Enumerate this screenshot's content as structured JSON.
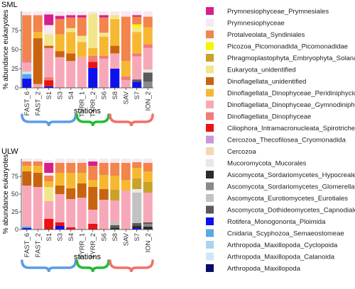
{
  "colors": {
    "Prymnesiophyceae_Prymnesiales": "#d61f8c",
    "Prymnesiophyceae": "#f7e8f2",
    "Protalveolata_Syndiniales": "#f2844c",
    "Picozoa_Picomonadida_Picomonadidae": "#f5f500",
    "Phragmoplastophyta_Embryophyta_Solanales": "#c9a22a",
    "Eukaryota_unidentified": "#f2e68c",
    "Dinoflagellata_unidentified": "#c86410",
    "Dinoflagellata_Dinophyceae_Peridiniphycidae": "#f7b831",
    "Dinoflagellata_Dinophyceae_Gymnodiniphycidae": "#f7a8b8",
    "Dinoflagellata_Dinophyceae": "#ef7c78",
    "Ciliophora_Intramacronucleata_Spirotrichea": "#ee1111",
    "Cercozoa_Thecofilosea_Cryomonadida": "#c898d6",
    "Cercozoa": "#f5d6b0",
    "Mucoromycota_Mucorales": "#e8e8e8",
    "Ascomycota_Sordariomycetes_Hypocreales": "#2b2b2b",
    "Ascomycota_Sordariomycetes_Glomerellales": "#8a8a8a",
    "Ascomycota_Eurotiomycetes_Eurotiales": "#c2c2c2",
    "Ascomycota_Dothideomycetes_Capnodiales": "#5a5a5a",
    "Rotifera_Monogononta_Ploimida": "#1010ee",
    "Cnidaria_Scyphozoa_Semaeostomeae": "#5aa8e8",
    "Arthropoda_Maxillopoda_Cyclopoida": "#a8d4f0",
    "Arthropoda_Maxillopoda_Calanoida": "#d0e6f8",
    "Arthropoda_Maxillopoda": "#0a0a6e"
  },
  "chart_data": {
    "type": "bar",
    "stacked": true,
    "xlabel": "stations",
    "ylabel": "% abundance eukaryotes",
    "ylim": [
      0,
      100
    ],
    "yticks": [
      0,
      25,
      50,
      75
    ],
    "categories": [
      "FAST_6",
      "FAST_2",
      "S1",
      "S3",
      "S4",
      "TYRR_1",
      "TYRR_2",
      "S6",
      "S8",
      "SAV",
      "S7",
      "ION_2"
    ],
    "legend": [
      "Prymnesiophyceae_Prymnesiales",
      "Prymnesiophyceae",
      "Protalveolata_Syndiniales",
      "Picozoa_Picomonadida_Picomonadidae",
      "Phragmoplastophyta_Embryophyta_Solanales",
      "Eukaryota_unidentified",
      "Dinoflagellata_unidentified",
      "Dinoflagellata_Dinophyceae_Peridiniphycidae",
      "Dinoflagellata_Dinophyceae_Gymnodiniphycidae",
      "Dinoflagellata_Dinophyceae",
      "Ciliophora_Intramacronucleata_Spirotrichea",
      "Cercozoa_Thecofilosea_Cryomonadida",
      "Cercozoa",
      "Mucoromycota_Mucorales",
      "Ascomycota_Sordariomycetes_Hypocreales",
      "Ascomycota_Sordariomycetes_Glomerellales",
      "Ascomycota_Eurotiomycetes_Eurotiales",
      "Ascomycota_Dothideomycetes_Capnodiales",
      "Rotifera_Monogononta_Ploimida",
      "Cnidaria_Scyphozoa_Semaeostomeae",
      "Arthropoda_Maxillopoda_Cyclopoida",
      "Arthropoda_Maxillopoda_Calanoida",
      "Arthropoda_Maxillopoda"
    ],
    "station_groups": [
      {
        "from": 0,
        "to": 4,
        "color": "#5b9be8"
      },
      {
        "from": 5,
        "to": 7,
        "color": "#22bb33"
      },
      {
        "from": 8,
        "to": 11,
        "color": "#f07068"
      }
    ],
    "panels": [
      {
        "title": "SML",
        "bars": [
          [
            [
              "Rotifera_Monogononta_Ploimida",
              12
            ],
            [
              "Cnidaria_Scyphozoa_Semaeostomeae",
              6
            ],
            [
              "Arthropoda_Maxillopoda_Calanoida",
              3
            ],
            [
              "Dinoflagellata_Dinophyceae_Gymnodiniphycidae",
              12
            ],
            [
              "Dinoflagellata_Dinophyceae",
              4
            ],
            [
              "Protalveolata_Syndiniales",
              58
            ],
            [
              "Prymnesiophyceae",
              5
            ]
          ],
          [
            [
              "Dinoflagellata_Dinophyceae_Gymnodiniphycidae",
              5
            ],
            [
              "Dinoflagellata_unidentified",
              60
            ],
            [
              "Dinoflagellata_Dinophyceae_Peridiniphycidae",
              8
            ],
            [
              "Protalveolata_Syndiniales",
              22
            ],
            [
              "Prymnesiophyceae",
              5
            ]
          ],
          [
            [
              "Rotifera_Monogononta_Ploimida",
              2
            ],
            [
              "Ciliophora_Intramacronucleata_Spirotrichea",
              8
            ],
            [
              "Dinoflagellata_Dinophyceae",
              4
            ],
            [
              "Dinoflagellata_Dinophyceae_Gymnodiniphycidae",
              38
            ],
            [
              "Dinoflagellata_unidentified",
              3
            ],
            [
              "Eukaryota_unidentified",
              15
            ],
            [
              "Prymnesiophyceae",
              12
            ],
            [
              "Prymnesiophyceae_Prymnesiales",
              14
            ],
            [
              "Prymnesiophyceae",
              4
            ]
          ],
          [
            [
              "Dinoflagellata_Dinophyceae_Gymnodiniphycidae",
              40
            ],
            [
              "Dinoflagellata_unidentified",
              8
            ],
            [
              "Dinoflagellata_Dinophyceae_Peridiniphycidae",
              22
            ],
            [
              "Protalveolata_Syndiniales",
              20
            ],
            [
              "Prymnesiophyceae_Prymnesiales",
              4
            ],
            [
              "Prymnesiophyceae",
              6
            ]
          ],
          [
            [
              "Dinoflagellata_Dinophyceae_Gymnodiniphycidae",
              35
            ],
            [
              "Dinoflagellata_unidentified",
              10
            ],
            [
              "Dinoflagellata_Dinophyceae_Peridiniphycidae",
              28
            ],
            [
              "Eukaryota_unidentified",
              5
            ],
            [
              "Protalveolata_Syndiniales",
              14
            ],
            [
              "Prymnesiophyceae_Prymnesiales",
              3
            ],
            [
              "Prymnesiophyceae",
              5
            ]
          ],
          [
            [
              "Dinoflagellata_Dinophyceae_Gymnodiniphycidae",
              40
            ],
            [
              "Dinoflagellata_Dinophyceae_Peridiniphycidae",
              20
            ],
            [
              "Eukaryota_unidentified",
              8
            ],
            [
              "Protalveolata_Syndiniales",
              24
            ],
            [
              "Prymnesiophyceae_Prymnesiales",
              3
            ],
            [
              "Prymnesiophyceae",
              5
            ]
          ],
          [
            [
              "Rotifera_Monogononta_Ploimida",
              26
            ],
            [
              "Ciliophora_Intramacronucleata_Spirotrichea",
              8
            ],
            [
              "Dinoflagellata_Dinophyceae",
              8
            ],
            [
              "Dinoflagellata_Dinophyceae_Peridiniphycidae",
              10
            ],
            [
              "Eukaryota_unidentified",
              45
            ],
            [
              "Prymnesiophyceae",
              3
            ]
          ],
          [
            [
              "Dinoflagellata_Dinophyceae_Gymnodiniphycidae",
              38
            ],
            [
              "Dinoflagellata_Dinophyceae",
              4
            ],
            [
              "Dinoflagellata_Dinophyceae_Peridiniphycidae",
              25
            ],
            [
              "Eukaryota_unidentified",
              5
            ],
            [
              "Protalveolata_Syndiniales",
              20
            ],
            [
              "Prymnesiophyceae_Prymnesiales",
              3
            ],
            [
              "Prymnesiophyceae",
              5
            ]
          ],
          [
            [
              "Rotifera_Monogononta_Ploimida",
              25
            ],
            [
              "Dinoflagellata_Dinophyceae_Gymnodiniphycidae",
              20
            ],
            [
              "Dinoflagellata_unidentified",
              10
            ],
            [
              "Dinoflagellata_Dinophyceae_Peridiniphycidae",
              35
            ],
            [
              "Eukaryota_unidentified",
              5
            ],
            [
              "Prymnesiophyceae",
              5
            ]
          ],
          [
            [
              "Dinoflagellata_Dinophyceae_Gymnodiniphycidae",
              10
            ],
            [
              "Dinoflagellata_Dinophyceae",
              5
            ],
            [
              "Dinoflagellata_Dinophyceae_Peridiniphycidae",
              20
            ],
            [
              "Protalveolata_Syndiniales",
              58
            ],
            [
              "Prymnesiophyceae",
              7
            ]
          ],
          [
            [
              "Rotifera_Monogononta_Ploimida",
              8
            ],
            [
              "Ascomycota_Dothideomycetes_Capnodiales",
              3
            ],
            [
              "Dinoflagellata_Dinophyceae_Gymnodiniphycidae",
              30
            ],
            [
              "Dinoflagellata_Dinophyceae",
              4
            ],
            [
              "Dinoflagellata_Dinophyceae_Peridiniphycidae",
              28
            ],
            [
              "Eukaryota_unidentified",
              6
            ],
            [
              "Picozoa_Picomonadida_Picomonadidae",
              4
            ],
            [
              "Protalveolata_Syndiniales",
              10
            ],
            [
              "Prymnesiophyceae_Prymnesiales",
              2
            ],
            [
              "Prymnesiophyceae",
              5
            ]
          ],
          [
            [
              "Ascomycota_Sordariomycetes_Glomerellales",
              8
            ],
            [
              "Ascomycota_Dothideomycetes_Capnodiales",
              12
            ],
            [
              "Mucoromycota_Mucorales",
              4
            ],
            [
              "Dinoflagellata_Dinophyceae_Gymnodiniphycidae",
              28
            ],
            [
              "Dinoflagellata_Dinophyceae",
              5
            ],
            [
              "Dinoflagellata_Dinophyceae_Peridiniphycidae",
              22
            ],
            [
              "Protalveolata_Syndiniales",
              14
            ],
            [
              "Prymnesiophyceae",
              7
            ]
          ]
        ]
      },
      {
        "title": "ULW",
        "bars": [
          [
            [
              "Rotifera_Monogononta_Ploimida",
              2
            ],
            [
              "Cnidaria_Scyphozoa_Semaeostomeae",
              2
            ],
            [
              "Dinoflagellata_Dinophyceae_Gymnodiniphycidae",
              58
            ],
            [
              "Dinoflagellata_unidentified",
              20
            ],
            [
              "Dinoflagellata_Dinophyceae_Peridiniphycidae",
              8
            ],
            [
              "Protalveolata_Syndiniales",
              6
            ],
            [
              "Prymnesiophyceae",
              4
            ]
          ],
          [
            [
              "Dinoflagellata_Dinophyceae_Gymnodiniphycidae",
              60
            ],
            [
              "Dinoflagellata_unidentified",
              20
            ],
            [
              "Dinoflagellata_Dinophyceae_Peridiniphycidae",
              10
            ],
            [
              "Protalveolata_Syndiniales",
              6
            ],
            [
              "Prymnesiophyceae",
              4
            ]
          ],
          [
            [
              "Ciliophora_Intramacronucleata_Spirotrichea",
              15
            ],
            [
              "Dinoflagellata_Dinophyceae_Gymnodiniphycidae",
              25
            ],
            [
              "Eukaryota_unidentified",
              20
            ],
            [
              "Dinoflagellata_Dinophyceae_Peridiniphycidae",
              8
            ],
            [
              "Protalveolata_Syndiniales",
              8
            ],
            [
              "Prymnesiophyceae",
              4
            ],
            [
              "Prymnesiophyceae_Prymnesiales",
              14
            ],
            [
              "Prymnesiophyceae",
              4
            ]
          ],
          [
            [
              "Rotifera_Monogononta_Ploimida",
              5
            ],
            [
              "Ciliophora_Intramacronucleata_Spirotrichea",
              5
            ],
            [
              "Dinoflagellata_Dinophyceae_Gymnodiniphycidae",
              40
            ],
            [
              "Dinoflagellata_unidentified",
              12
            ],
            [
              "Dinoflagellata_Dinophyceae_Peridiniphycidae",
              18
            ],
            [
              "Protalveolata_Syndiniales",
              14
            ],
            [
              "Prymnesiophyceae",
              6
            ]
          ],
          [
            [
              "Ciliophora_Intramacronucleata_Spirotrichea",
              3
            ],
            [
              "Dinoflagellata_Dinophyceae_Gymnodiniphycidae",
              40
            ],
            [
              "Dinoflagellata_unidentified",
              15
            ],
            [
              "Dinoflagellata_Dinophyceae_Peridiniphycidae",
              22
            ],
            [
              "Protalveolata_Syndiniales",
              14
            ],
            [
              "Prymnesiophyceae",
              6
            ]
          ],
          [
            [
              "Dinoflagellata_Dinophyceae_Gymnodiniphycidae",
              45
            ],
            [
              "Dinoflagellata_unidentified",
              20
            ],
            [
              "Dinoflagellata_Dinophyceae_Peridiniphycidae",
              15
            ],
            [
              "Protalveolata_Syndiniales",
              14
            ],
            [
              "Prymnesiophyceae",
              6
            ]
          ],
          [
            [
              "Ciliophora_Intramacronucleata_Spirotrichea",
              8
            ],
            [
              "Dinoflagellata_Dinophyceae_Gymnodiniphycidae",
              20
            ],
            [
              "Dinoflagellata_unidentified",
              32
            ],
            [
              "Dinoflagellata_Dinophyceae_Peridiniphycidae",
              10
            ],
            [
              "Protalveolata_Syndiniales",
              20
            ],
            [
              "Prymnesiophyceae_Prymnesiales",
              6
            ],
            [
              "Prymnesiophyceae",
              4
            ]
          ],
          [
            [
              "Dinoflagellata_Dinophyceae_Gymnodiniphycidae",
              42
            ],
            [
              "Dinoflagellata_unidentified",
              15
            ],
            [
              "Dinoflagellata_Dinophyceae_Peridiniphycidae",
              20
            ],
            [
              "Protalveolata_Syndiniales",
              17
            ],
            [
              "Prymnesiophyceae",
              6
            ]
          ],
          [
            [
              "Ascomycota_Sordariomycetes_Hypocreales",
              2
            ],
            [
              "Ascomycota_Dothideomycetes_Capnodiales",
              4
            ],
            [
              "Ascomycota_Eurotiomycetes_Eurotiales",
              5
            ],
            [
              "Dinoflagellata_Dinophyceae_Gymnodiniphycidae",
              30
            ],
            [
              "Phragmoplastophyta_Embryophyta_Solanales",
              15
            ],
            [
              "Dinoflagellata_Dinophyceae_Peridiniphycidae",
              20
            ],
            [
              "Protalveolata_Syndiniales",
              18
            ],
            [
              "Prymnesiophyceae",
              6
            ]
          ],
          [
            [
              "Dinoflagellata_Dinophyceae_Gymnodiniphycidae",
              55
            ],
            [
              "Dinoflagellata_Dinophyceae_Peridiniphycidae",
              15
            ],
            [
              "Protalveolata_Syndiniales",
              24
            ],
            [
              "Prymnesiophyceae",
              6
            ]
          ],
          [
            [
              "Rotifera_Monogononta_Ploimida",
              2
            ],
            [
              "Ascomycota_Sordariomycetes_Hypocreales",
              3
            ],
            [
              "Ascomycota_Dothideomycetes_Capnodiales",
              4
            ],
            [
              "Ascomycota_Eurotiomycetes_Eurotiales",
              43
            ],
            [
              "Mucoromycota_Mucorales",
              5
            ],
            [
              "Phragmoplastophyta_Embryophyta_Solanales",
              15
            ],
            [
              "Dinoflagellata_Dinophyceae_Peridiniphycidae",
              15
            ],
            [
              "Protalveolata_Syndiniales",
              8
            ],
            [
              "Prymnesiophyceae",
              5
            ]
          ],
          [
            [
              "Ascomycota_Sordariomycetes_Hypocreales",
              4
            ],
            [
              "Ascomycota_Sordariomycetes_Glomerellales",
              4
            ],
            [
              "Ascomycota_Dothideomycetes_Capnodiales",
              2
            ],
            [
              "Dinoflagellata_Dinophyceae_Gymnodiniphycidae",
              42
            ],
            [
              "Phragmoplastophyta_Embryophyta_Solanales",
              15
            ],
            [
              "Dinoflagellata_Dinophyceae_Peridiniphycidae",
              15
            ],
            [
              "Protalveolata_Syndiniales",
              12
            ],
            [
              "Prymnesiophyceae",
              6
            ]
          ]
        ]
      }
    ]
  }
}
